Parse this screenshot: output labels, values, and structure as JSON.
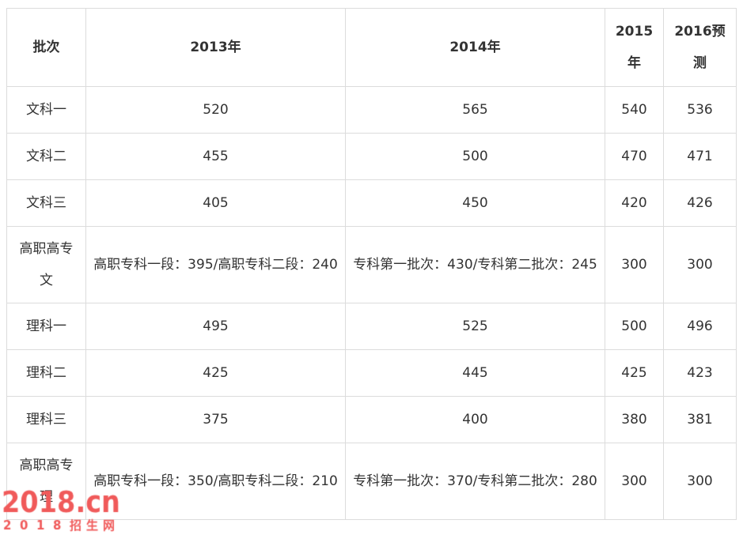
{
  "table": {
    "headers": [
      "批次",
      "2013年",
      "2014年",
      "2015年",
      "2016预测"
    ],
    "rows": [
      [
        "文科一",
        "520",
        "565",
        "540",
        "536"
      ],
      [
        "文科二",
        "455",
        "500",
        "470",
        "471"
      ],
      [
        "文科三",
        "405",
        "450",
        "420",
        "426"
      ],
      [
        "高职高专文",
        "高职专科一段：395/高职专科二段：240",
        "专科第一批次：430/专科第二批次：245",
        "300",
        "300"
      ],
      [
        "理科一",
        "495",
        "525",
        "500",
        "496"
      ],
      [
        "理科二",
        "425",
        "445",
        "425",
        "423"
      ],
      [
        "理科三",
        "375",
        "400",
        "380",
        "381"
      ],
      [
        "高职高专理",
        "高职专科一段：350/高职专科二段：210",
        "专科第一批次：370/专科第二批次：280",
        "300",
        "300"
      ]
    ]
  },
  "watermark": {
    "logo": "2018.cn",
    "subtitle": "2018招生网",
    "color": "#f05a5a"
  }
}
